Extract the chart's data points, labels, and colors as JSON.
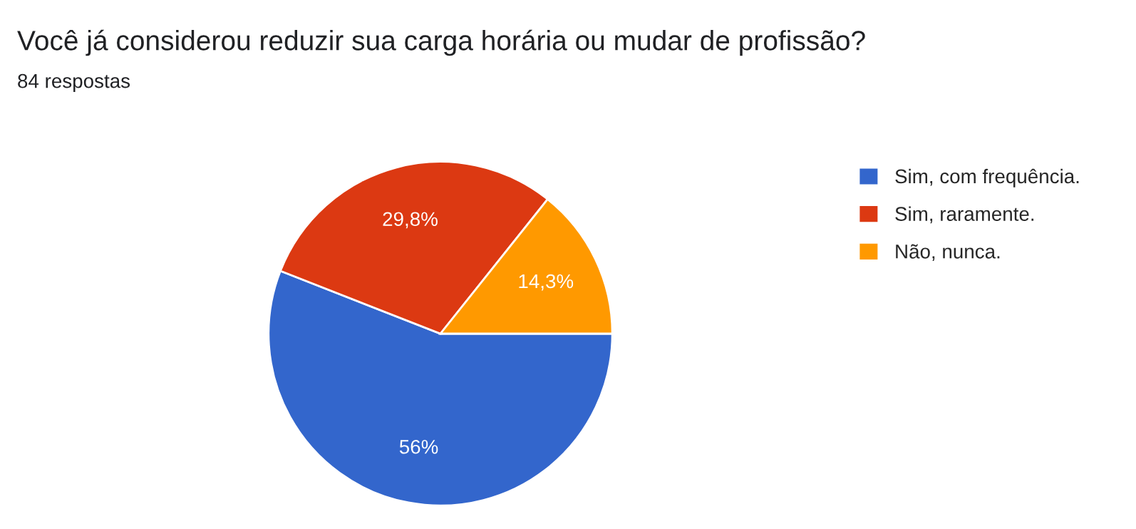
{
  "chart_data": {
    "type": "pie",
    "title": "Você já considerou reduzir sua carga horária ou mudar de profissão?",
    "subtitle": "84 respostas",
    "categories": [
      "Sim, com frequência.",
      "Sim, raramente.",
      "Não, nunca."
    ],
    "values": [
      56,
      29.8,
      14.3
    ],
    "value_labels": [
      "56%",
      "29,8%",
      "14,3%"
    ],
    "colors": [
      "#3366cc",
      "#dc3912",
      "#ff9900"
    ],
    "legend": "top right"
  }
}
